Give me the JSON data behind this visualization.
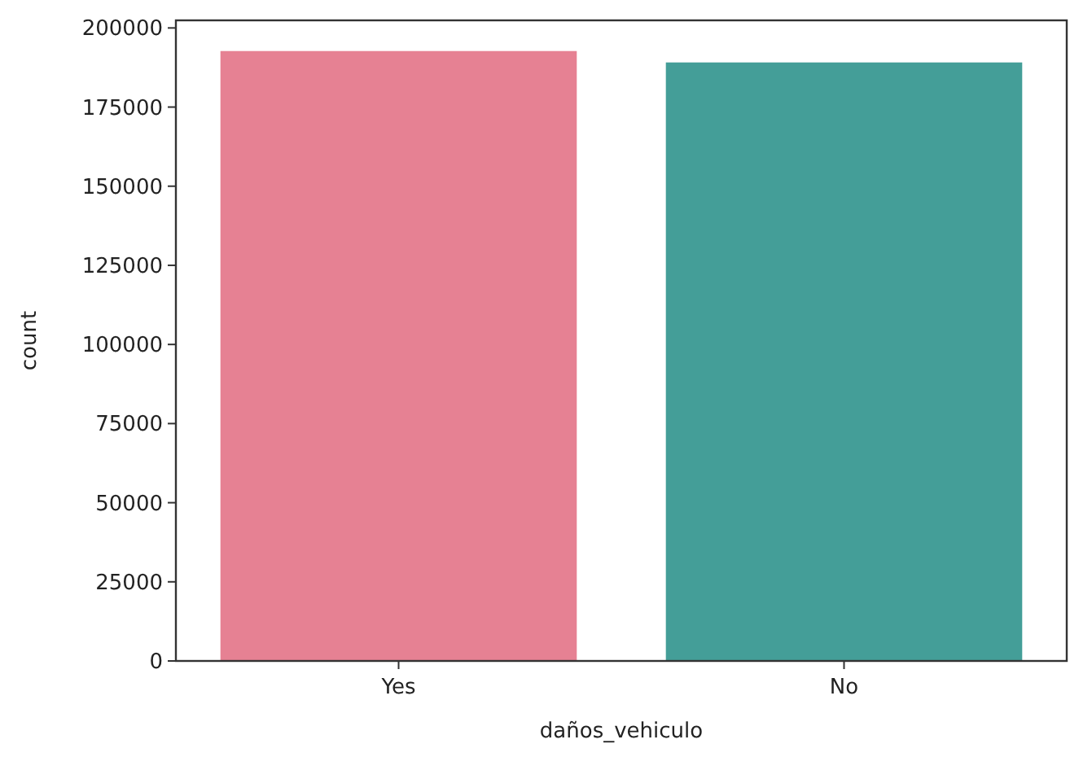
{
  "chart_data": {
    "type": "bar",
    "xlabel": "daños_vehiculo",
    "ylabel": "count",
    "categories": [
      "Yes",
      "No"
    ],
    "values": [
      192700,
      189100
    ],
    "colors": [
      "#e68193",
      "#449e98"
    ],
    "ylim": [
      0,
      202400
    ],
    "yticks": [
      0,
      25000,
      50000,
      75000,
      100000,
      125000,
      150000,
      175000,
      200000
    ],
    "grid": false
  }
}
